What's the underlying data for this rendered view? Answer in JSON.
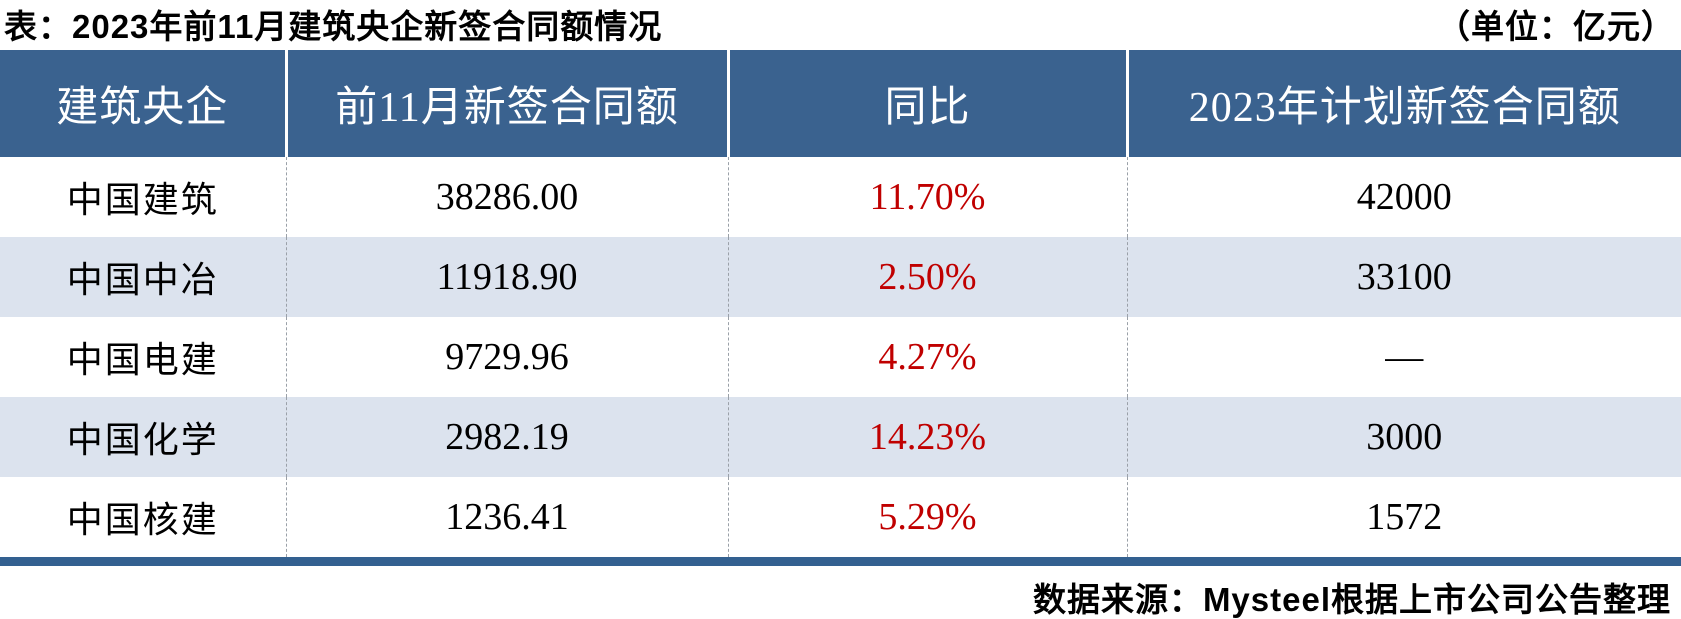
{
  "title": {
    "text": "表：2023年前11月建筑央企新签合同额情况",
    "unit": "（单位：亿元）"
  },
  "table": {
    "columns": [
      "建筑央企",
      "前11月新签合同额",
      "同比",
      "2023年计划新签合同额"
    ],
    "rows": [
      {
        "company": "中国建筑",
        "new_contract": "38286.00",
        "yoy": "11.70%",
        "plan": "42000"
      },
      {
        "company": "中国中冶",
        "new_contract": "11918.90",
        "yoy": "2.50%",
        "plan": "33100"
      },
      {
        "company": "中国电建",
        "new_contract": "9729.96",
        "yoy": "4.27%",
        "plan": "—"
      },
      {
        "company": "中国化学",
        "new_contract": "2982.19",
        "yoy": "14.23%",
        "plan": "3000"
      },
      {
        "company": "中国核建",
        "new_contract": "1236.41",
        "yoy": "5.29%",
        "plan": "1572"
      }
    ]
  },
  "footer": {
    "source": "数据来源：Mysteel根据上市公司公告整理"
  },
  "colors": {
    "header_bg": "#3A628F",
    "stripe_bg": "#DCE3EE",
    "yoy_red": "#C00000",
    "bottom_border": "#336090",
    "header_text": "#FFFFFF",
    "body_text": "#000000"
  },
  "chart_data": {
    "type": "table",
    "title": "表：2023年前11月建筑央企新签合同额情况",
    "unit_note": "（单位：亿元）",
    "columns": [
      "建筑央企",
      "前11月新签合同额",
      "同比",
      "2023年计划新签合同额"
    ],
    "rows": [
      [
        "中国建筑",
        "38286.00",
        "11.70%",
        "42000"
      ],
      [
        "中国中冶",
        "11918.90",
        "2.50%",
        "33100"
      ],
      [
        "中国电建",
        "9729.96",
        "4.27%",
        "—"
      ],
      [
        "中国化学",
        "2982.19",
        "14.23%",
        "3000"
      ],
      [
        "中国核建",
        "1236.41",
        "5.29%",
        "1572"
      ]
    ],
    "yoy_values_numeric": [
      11.7,
      2.5,
      4.27,
      14.23,
      5.29
    ],
    "new_contract_numeric": [
      38286.0,
      11918.9,
      9729.96,
      2982.19,
      1236.41
    ],
    "plan_numeric": [
      42000,
      33100,
      null,
      3000,
      1572
    ],
    "source": "数据来源：Mysteel根据上市公司公告整理"
  }
}
